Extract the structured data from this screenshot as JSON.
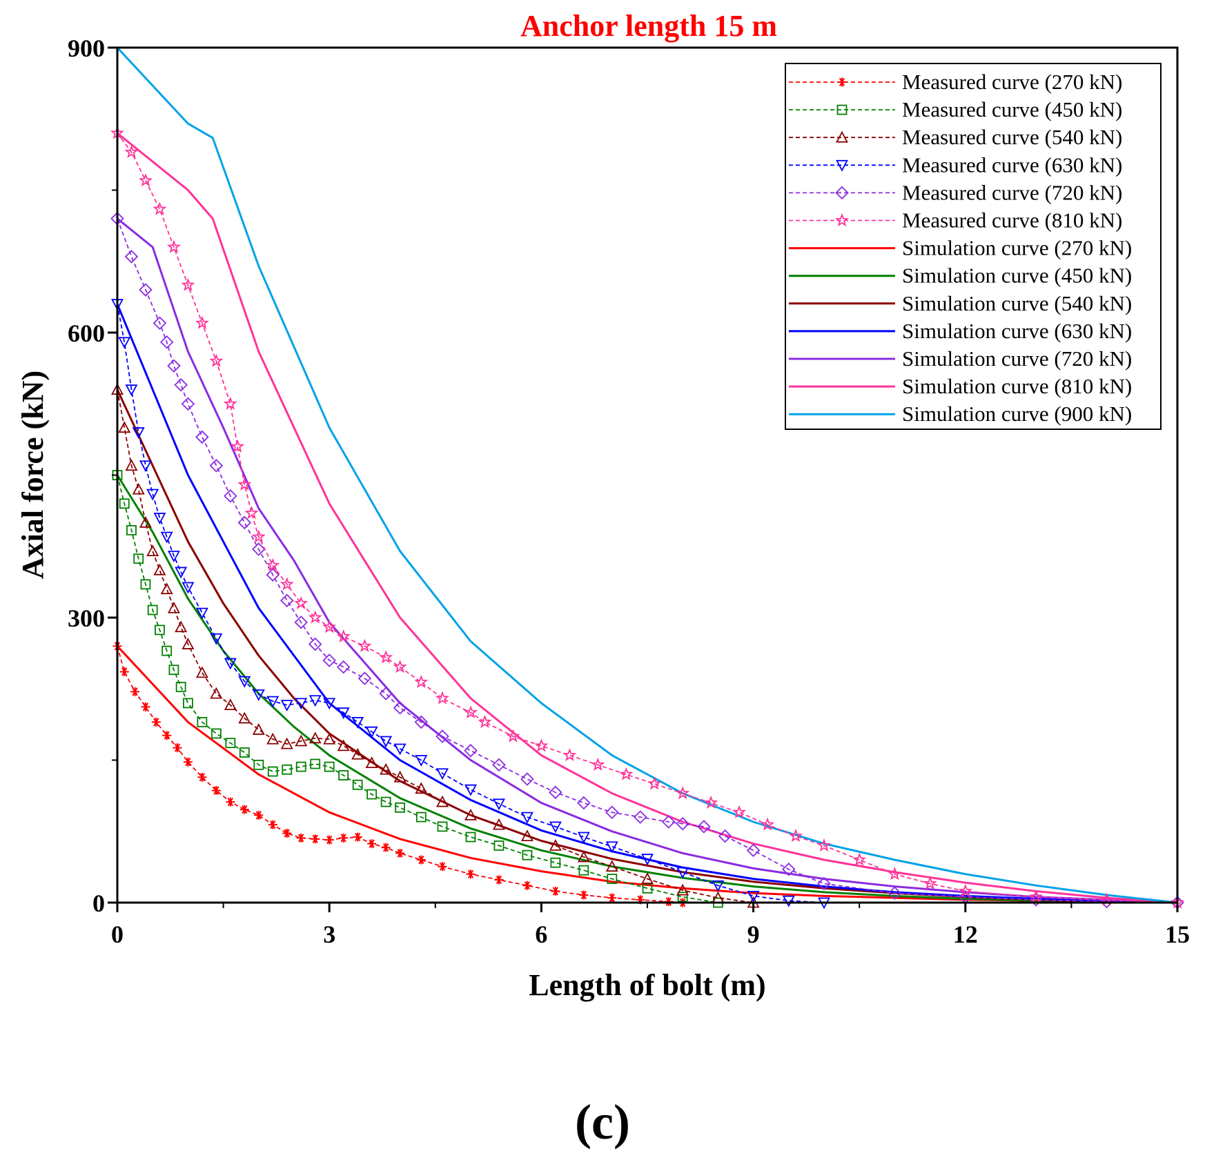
{
  "chart_data": {
    "type": "line",
    "title": "Anchor length 15 m",
    "title_color": "#ff0000",
    "xlabel": "Length of bolt (m)",
    "ylabel": "Axial force (kN)",
    "xlim": [
      0,
      15
    ],
    "ylim": [
      0,
      900
    ],
    "xticks": [
      0,
      3,
      6,
      9,
      12,
      15
    ],
    "yticks": [
      0,
      300,
      600,
      900
    ],
    "legend_position": "top-right",
    "panel_label": "(c)",
    "series": [
      {
        "name": "Measured curve (270 kN)",
        "kind": "measured",
        "marker": "asterisk",
        "color": "#ff0000",
        "x": [
          0,
          0.1,
          0.25,
          0.4,
          0.55,
          0.7,
          0.85,
          1.0,
          1.2,
          1.4,
          1.6,
          1.8,
          2.0,
          2.2,
          2.4,
          2.6,
          2.8,
          3.0,
          3.2,
          3.4,
          3.6,
          3.8,
          4.0,
          4.3,
          4.6,
          5.0,
          5.4,
          5.8,
          6.2,
          6.6,
          7.0,
          7.4,
          7.8,
          8.0
        ],
        "y": [
          270,
          243,
          222,
          206,
          190,
          176,
          163,
          148,
          132,
          118,
          106,
          98,
          92,
          82,
          73,
          68,
          67,
          66,
          68,
          69,
          62,
          58,
          52,
          45,
          38,
          30,
          24,
          18,
          12,
          8,
          5,
          3,
          1,
          0
        ]
      },
      {
        "name": "Measured curve (450 kN)",
        "kind": "measured",
        "marker": "square",
        "color": "#008000",
        "x": [
          0,
          0.1,
          0.2,
          0.3,
          0.4,
          0.5,
          0.6,
          0.7,
          0.8,
          0.9,
          1.0,
          1.2,
          1.4,
          1.6,
          1.8,
          2.0,
          2.2,
          2.4,
          2.6,
          2.8,
          3.0,
          3.2,
          3.4,
          3.6,
          3.8,
          4.0,
          4.3,
          4.6,
          5.0,
          5.4,
          5.8,
          6.2,
          6.6,
          7.0,
          7.5,
          8.0,
          8.5
        ],
        "y": [
          450,
          420,
          392,
          362,
          335,
          308,
          287,
          265,
          245,
          227,
          210,
          190,
          178,
          168,
          158,
          145,
          138,
          140,
          143,
          146,
          143,
          134,
          124,
          114,
          106,
          100,
          90,
          80,
          69,
          60,
          50,
          42,
          34,
          25,
          15,
          6,
          0
        ]
      },
      {
        "name": "Measured curve (540 kN)",
        "kind": "measured",
        "marker": "triangle-up",
        "color": "#8b0000",
        "x": [
          0,
          0.1,
          0.2,
          0.3,
          0.4,
          0.5,
          0.6,
          0.7,
          0.8,
          0.9,
          1.0,
          1.2,
          1.4,
          1.6,
          1.8,
          2.0,
          2.2,
          2.4,
          2.6,
          2.8,
          3.0,
          3.2,
          3.4,
          3.6,
          3.8,
          4.0,
          4.3,
          4.6,
          5.0,
          5.4,
          5.8,
          6.2,
          6.6,
          7.0,
          7.5,
          8.0,
          8.5,
          9.0
        ],
        "y": [
          540,
          500,
          460,
          435,
          400,
          370,
          350,
          330,
          310,
          290,
          272,
          242,
          220,
          208,
          194,
          182,
          172,
          167,
          170,
          173,
          172,
          165,
          156,
          147,
          140,
          132,
          120,
          106,
          92,
          82,
          70,
          60,
          48,
          38,
          25,
          13,
          5,
          0
        ]
      },
      {
        "name": "Measured curve (630 kN)",
        "kind": "measured",
        "marker": "triangle-down",
        "color": "#0000ff",
        "x": [
          0,
          0.1,
          0.2,
          0.3,
          0.4,
          0.5,
          0.6,
          0.7,
          0.8,
          0.9,
          1.0,
          1.2,
          1.4,
          1.6,
          1.8,
          2.0,
          2.2,
          2.4,
          2.6,
          2.8,
          3.0,
          3.2,
          3.4,
          3.6,
          3.8,
          4.0,
          4.3,
          4.6,
          5.0,
          5.4,
          5.8,
          6.2,
          6.6,
          7.0,
          7.5,
          8.0,
          8.5,
          9.0,
          9.5,
          10.0
        ],
        "y": [
          630,
          590,
          540,
          495,
          460,
          430,
          405,
          385,
          365,
          348,
          332,
          305,
          278,
          252,
          233,
          219,
          212,
          208,
          210,
          213,
          210,
          200,
          190,
          180,
          170,
          162,
          150,
          136,
          119,
          104,
          90,
          80,
          69,
          59,
          46,
          32,
          18,
          7,
          2,
          0
        ]
      },
      {
        "name": "Measured curve (720 kN)",
        "kind": "measured",
        "marker": "diamond",
        "color": "#8a2be2",
        "x": [
          0,
          0.2,
          0.4,
          0.6,
          0.7,
          0.8,
          0.9,
          1.0,
          1.2,
          1.4,
          1.6,
          1.8,
          2.0,
          2.2,
          2.4,
          2.6,
          2.8,
          3.0,
          3.2,
          3.5,
          3.8,
          4.0,
          4.3,
          4.6,
          5.0,
          5.4,
          5.8,
          6.2,
          6.6,
          7.0,
          7.4,
          7.8,
          8.0,
          8.3,
          8.6,
          9.0,
          9.5,
          10.0,
          11.0,
          12.0,
          13.0,
          14.0,
          15.0
        ],
        "y": [
          720,
          680,
          645,
          610,
          590,
          565,
          545,
          525,
          490,
          460,
          428,
          400,
          372,
          345,
          318,
          295,
          272,
          255,
          248,
          236,
          220,
          205,
          190,
          175,
          160,
          145,
          130,
          116,
          105,
          95,
          90,
          85,
          83,
          80,
          70,
          55,
          35,
          20,
          10,
          6,
          3,
          1,
          0
        ]
      },
      {
        "name": "Measured curve (810 kN)",
        "kind": "measured",
        "marker": "star",
        "color": "#ff3399",
        "x": [
          0,
          0.2,
          0.4,
          0.6,
          0.8,
          1.0,
          1.2,
          1.4,
          1.6,
          1.7,
          1.8,
          1.9,
          2.0,
          2.2,
          2.4,
          2.6,
          2.8,
          3.0,
          3.2,
          3.5,
          3.8,
          4.0,
          4.3,
          4.6,
          5.0,
          5.2,
          5.6,
          6.0,
          6.4,
          6.8,
          7.2,
          7.6,
          8.0,
          8.4,
          8.8,
          9.2,
          9.6,
          10.0,
          10.5,
          11.0,
          11.5,
          12.0,
          13.0,
          14.0,
          15.0
        ],
        "y": [
          810,
          790,
          760,
          730,
          690,
          650,
          610,
          570,
          525,
          480,
          440,
          410,
          385,
          355,
          335,
          315,
          300,
          290,
          280,
          270,
          258,
          248,
          232,
          215,
          200,
          190,
          175,
          165,
          155,
          145,
          135,
          125,
          115,
          105,
          95,
          82,
          70,
          60,
          45,
          30,
          20,
          12,
          6,
          3,
          0
        ]
      },
      {
        "name": "Simulation curve (270 kN)",
        "kind": "simulation",
        "color": "#ff0000",
        "x": [
          0,
          1,
          2,
          3,
          4,
          5,
          6,
          7,
          8,
          9,
          10,
          11,
          12,
          13,
          14,
          15
        ],
        "y": [
          270,
          190,
          135,
          95,
          67,
          47,
          33,
          22,
          15,
          10,
          7,
          5,
          3,
          2,
          1,
          0
        ]
      },
      {
        "name": "Simulation curve (450 kN)",
        "kind": "simulation",
        "color": "#008000",
        "x": [
          0,
          0.5,
          1,
          1.5,
          2,
          2.5,
          3,
          4,
          5,
          6,
          7,
          8,
          9,
          10,
          11,
          12,
          13,
          14,
          15
        ],
        "y": [
          450,
          390,
          320,
          265,
          220,
          185,
          155,
          110,
          78,
          55,
          38,
          26,
          17,
          11,
          7,
          4,
          2,
          1,
          0
        ]
      },
      {
        "name": "Simulation curve (540 kN)",
        "kind": "simulation",
        "color": "#8b0000",
        "x": [
          0,
          0.5,
          1,
          1.5,
          2,
          2.5,
          3,
          4,
          5,
          6,
          7,
          8,
          9,
          10,
          11,
          12,
          13,
          14,
          15
        ],
        "y": [
          540,
          460,
          380,
          315,
          260,
          215,
          178,
          128,
          92,
          65,
          46,
          32,
          22,
          15,
          10,
          6,
          3,
          1,
          0
        ]
      },
      {
        "name": "Simulation curve (630 kN)",
        "kind": "simulation",
        "color": "#0000ff",
        "x": [
          0,
          0.5,
          1,
          1.5,
          2,
          2.5,
          3,
          4,
          5,
          6,
          7,
          8,
          9,
          10,
          11,
          12,
          13,
          14,
          15
        ],
        "y": [
          630,
          540,
          450,
          380,
          310,
          260,
          210,
          150,
          108,
          76,
          54,
          37,
          25,
          17,
          11,
          7,
          4,
          2,
          0
        ]
      },
      {
        "name": "Simulation curve (720 kN)",
        "kind": "simulation",
        "color": "#8a2be2",
        "x": [
          0,
          0.5,
          1,
          1.5,
          2,
          2.5,
          3,
          4,
          5,
          6,
          7,
          8,
          9,
          10,
          11,
          12,
          13,
          14,
          15
        ],
        "y": [
          720,
          690,
          580,
          500,
          415,
          360,
          295,
          210,
          150,
          105,
          75,
          52,
          36,
          25,
          17,
          11,
          6,
          3,
          0
        ]
      },
      {
        "name": "Simulation curve (810 kN)",
        "kind": "simulation",
        "color": "#ff3399",
        "x": [
          0,
          0.5,
          1,
          1.35,
          2,
          3,
          4,
          5,
          6,
          7,
          8,
          9,
          10,
          11,
          12,
          13,
          14,
          15
        ],
        "y": [
          810,
          780,
          750,
          720,
          580,
          420,
          300,
          215,
          155,
          115,
          85,
          62,
          45,
          32,
          21,
          12,
          5,
          0
        ]
      },
      {
        "name": "Simulation curve (900 kN)",
        "kind": "simulation",
        "color": "#00a2e8",
        "x": [
          0,
          0.5,
          1,
          1.35,
          2,
          3,
          4,
          5,
          6,
          7,
          8,
          9,
          10,
          11,
          12,
          13,
          14,
          15
        ],
        "y": [
          900,
          860,
          820,
          805,
          670,
          500,
          370,
          275,
          210,
          155,
          115,
          85,
          62,
          45,
          30,
          18,
          8,
          0
        ]
      }
    ]
  }
}
